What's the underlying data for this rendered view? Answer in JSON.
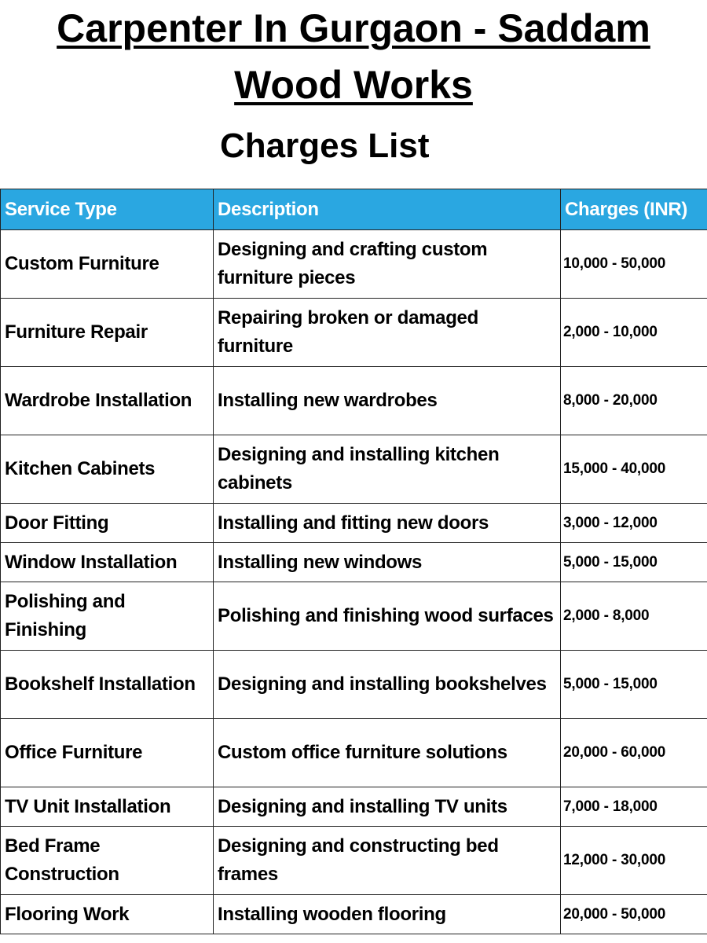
{
  "title_line1": "Carpenter In Gurgaon - Saddam",
  "title_line2": "Wood Works",
  "subtitle": "Charges List",
  "colors": {
    "header_bg": "#2aa7e1",
    "header_text": "#ffffff"
  },
  "table": {
    "headers": [
      "Service Type",
      "Description",
      "Charges (INR)"
    ],
    "rows": [
      [
        "Custom Furniture",
        "Designing and crafting custom furniture pieces",
        "10,000 - 50,000"
      ],
      [
        "Furniture Repair",
        "Repairing broken or damaged furniture",
        "2,000 - 10,000"
      ],
      [
        "Wardrobe Installation",
        "Installing new wardrobes",
        "8,000 - 20,000"
      ],
      [
        "Kitchen Cabinets",
        "Designing and installing kitchen cabinets",
        "15,000 - 40,000"
      ],
      [
        "Door Fitting",
        "Installing and fitting new doors",
        "3,000 - 12,000"
      ],
      [
        "Window Installation",
        "Installing new windows",
        "5,000 - 15,000"
      ],
      [
        "Polishing and Finishing",
        "Polishing and finishing wood surfaces",
        "2,000 - 8,000"
      ],
      [
        "Bookshelf Installation",
        "Designing and installing bookshelves",
        "5,000 - 15,000"
      ],
      [
        "Office Furniture",
        "Custom office furniture solutions",
        "20,000 - 60,000"
      ],
      [
        "TV Unit Installation",
        "Designing and installing TV units",
        "7,000 - 18,000"
      ],
      [
        "Bed Frame Construction",
        "Designing and constructing bed frames",
        "12,000 - 30,000"
      ],
      [
        "Flooring Work",
        "Installing wooden flooring",
        "20,000 - 50,000"
      ]
    ]
  }
}
